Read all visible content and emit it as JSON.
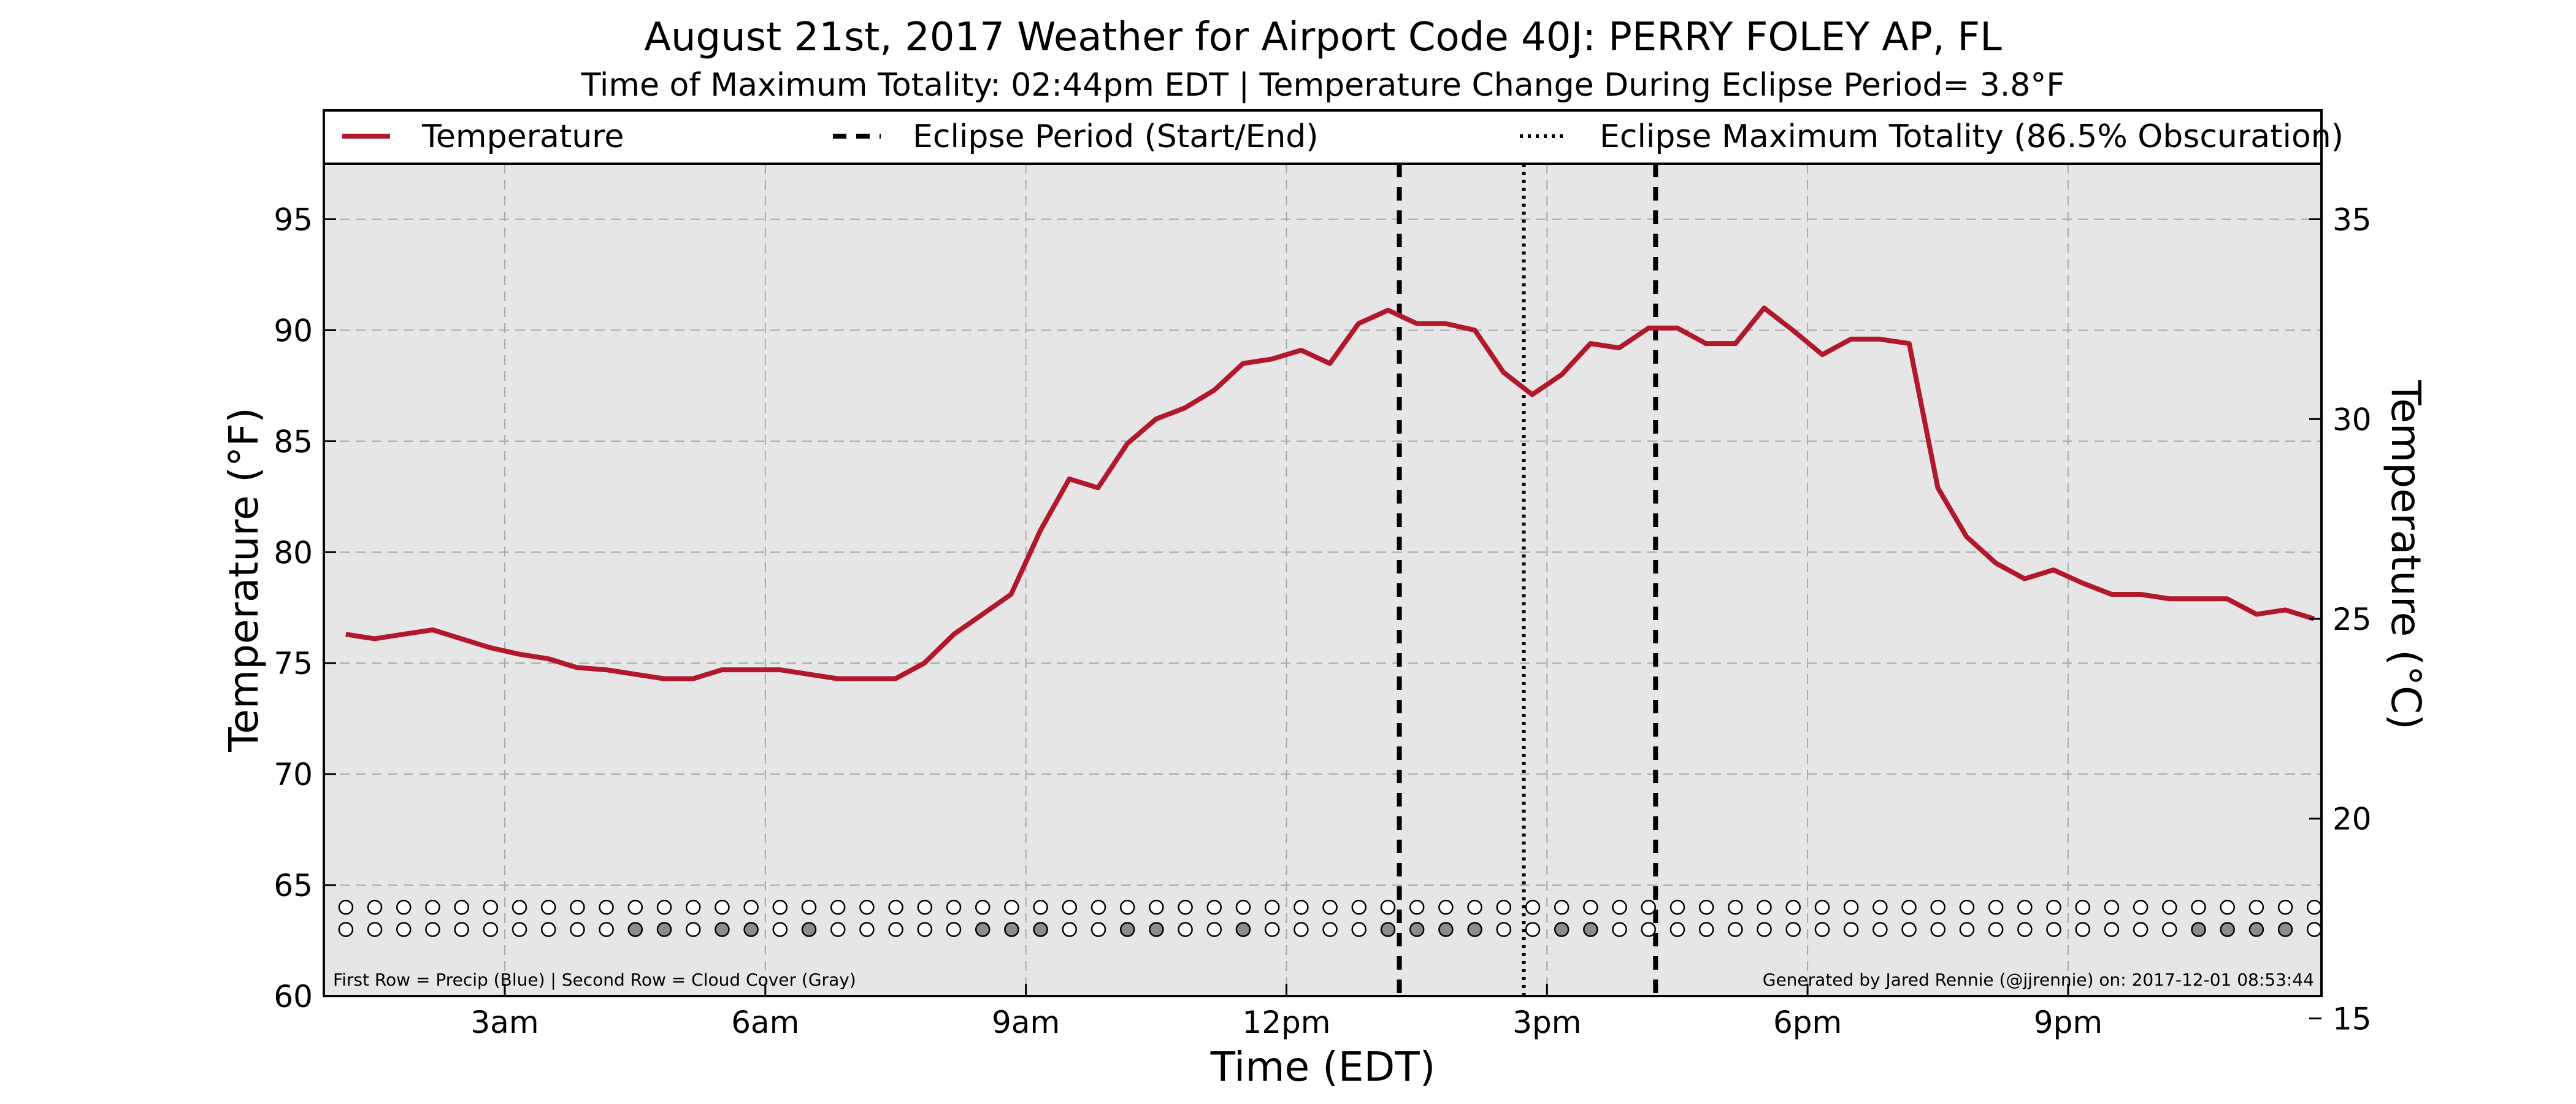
{
  "chart_data": {
    "type": "line",
    "title": "August 21st, 2017 Weather for Airport Code 40J: PERRY FOLEY AP, FL",
    "subtitle": "Time of Maximum Totality: 02:44pm EDT | Temperature Change During Eclipse Period= 3.8°F",
    "xlabel": "Time (EDT)",
    "ylabel": "Temperature (°F)",
    "ylabel_right": "Temperature (°C)",
    "x_unit": "hours after midnight EDT",
    "xlim": [
      0.917,
      23.917
    ],
    "ylim": [
      60,
      97.5
    ],
    "ylim_right": [
      15.56,
      36.39
    ],
    "x_ticks": [
      {
        "x": 3,
        "label": "3am"
      },
      {
        "x": 6,
        "label": "6am"
      },
      {
        "x": 9,
        "label": "9am"
      },
      {
        "x": 12,
        "label": "12pm"
      },
      {
        "x": 15,
        "label": "3pm"
      },
      {
        "x": 18,
        "label": "6pm"
      },
      {
        "x": 21,
        "label": "9pm"
      }
    ],
    "y_ticks": [
      60,
      65,
      70,
      75,
      80,
      85,
      90,
      95
    ],
    "y_ticks_right": [
      15,
      20,
      25,
      30,
      35
    ],
    "grid": true,
    "legend": {
      "placement": "top",
      "entries": [
        {
          "label": "Temperature",
          "style": "solid",
          "color": "#b2182b"
        },
        {
          "label": "Eclipse Period (Start/End)",
          "style": "dashed",
          "color": "#000000"
        },
        {
          "label": "Eclipse Maximum Totality (86.5% Obscuration)",
          "style": "dotted",
          "color": "#000000"
        }
      ]
    },
    "series": [
      {
        "name": "Temperature",
        "color": "#b2182b",
        "points": [
          [
            1.17,
            76.3
          ],
          [
            1.5,
            76.1
          ],
          [
            1.83,
            76.3
          ],
          [
            2.17,
            76.5
          ],
          [
            2.5,
            76.1
          ],
          [
            2.83,
            75.7
          ],
          [
            3.17,
            75.4
          ],
          [
            3.5,
            75.2
          ],
          [
            3.83,
            74.8
          ],
          [
            4.17,
            74.7
          ],
          [
            4.5,
            74.5
          ],
          [
            4.83,
            74.3
          ],
          [
            5.17,
            74.3
          ],
          [
            5.5,
            74.7
          ],
          [
            5.83,
            74.7
          ],
          [
            6.17,
            74.7
          ],
          [
            6.5,
            74.5
          ],
          [
            6.83,
            74.3
          ],
          [
            7.17,
            74.3
          ],
          [
            7.5,
            74.3
          ],
          [
            7.83,
            75.0
          ],
          [
            8.17,
            76.3
          ],
          [
            8.5,
            77.2
          ],
          [
            8.83,
            78.1
          ],
          [
            9.17,
            81.0
          ],
          [
            9.5,
            83.3
          ],
          [
            9.83,
            82.9
          ],
          [
            10.17,
            84.9
          ],
          [
            10.5,
            86.0
          ],
          [
            10.83,
            86.5
          ],
          [
            11.17,
            87.3
          ],
          [
            11.5,
            88.5
          ],
          [
            11.83,
            88.7
          ],
          [
            12.17,
            89.1
          ],
          [
            12.5,
            88.5
          ],
          [
            12.83,
            90.3
          ],
          [
            13.17,
            90.9
          ],
          [
            13.5,
            90.3
          ],
          [
            13.83,
            90.3
          ],
          [
            14.17,
            90.0
          ],
          [
            14.5,
            88.1
          ],
          [
            14.83,
            87.1
          ],
          [
            15.17,
            88.0
          ],
          [
            15.5,
            89.4
          ],
          [
            15.83,
            89.2
          ],
          [
            16.17,
            90.1
          ],
          [
            16.5,
            90.1
          ],
          [
            16.83,
            89.4
          ],
          [
            17.17,
            89.4
          ],
          [
            17.5,
            91.0
          ],
          [
            17.83,
            90.0
          ],
          [
            18.17,
            88.9
          ],
          [
            18.5,
            89.6
          ],
          [
            18.83,
            89.6
          ],
          [
            19.17,
            89.4
          ],
          [
            19.5,
            82.9
          ],
          [
            19.83,
            80.7
          ],
          [
            20.17,
            79.5
          ],
          [
            20.5,
            78.8
          ],
          [
            20.83,
            79.2
          ],
          [
            21.17,
            78.6
          ],
          [
            21.5,
            78.1
          ],
          [
            21.83,
            78.1
          ],
          [
            22.17,
            77.9
          ],
          [
            22.5,
            77.9
          ],
          [
            22.83,
            77.9
          ],
          [
            23.17,
            77.2
          ],
          [
            23.5,
            77.4
          ],
          [
            23.83,
            77.0
          ]
        ]
      }
    ],
    "eclipse_period": {
      "start": 13.3,
      "end": 16.25
    },
    "max_totality": 14.733,
    "max_totality_label": "02:44pm EDT",
    "obscuration_percent": 86.5,
    "temperature_change_f": 3.8,
    "weather_rows": {
      "x_start": 1.17,
      "x_step": 0.3333,
      "precip_y": 64.0,
      "cloud_y": 63.0,
      "precip_color": "#1f77b4",
      "cloud_gray_color": "#8c8c8c",
      "precip": [
        0,
        0,
        0,
        0,
        0,
        0,
        0,
        0,
        0,
        0,
        0,
        0,
        0,
        0,
        0,
        0,
        0,
        0,
        0,
        0,
        0,
        0,
        0,
        0,
        0,
        0,
        0,
        0,
        0,
        0,
        0,
        0,
        0,
        0,
        0,
        0,
        0,
        0,
        0,
        0,
        0,
        0,
        0,
        0,
        0,
        0,
        0,
        0,
        0,
        0,
        0,
        0,
        0,
        0,
        0,
        0,
        0,
        0,
        0,
        0,
        0,
        0,
        0,
        0,
        0,
        0,
        0,
        0,
        0
      ],
      "cloud_cover": [
        0,
        0,
        0,
        0,
        0,
        0,
        0,
        0,
        0,
        0,
        1,
        1,
        0,
        1,
        1,
        0,
        1,
        0,
        0,
        0,
        0,
        0,
        1,
        1,
        1,
        0,
        0,
        1,
        1,
        0,
        0,
        1,
        0,
        0,
        0,
        0,
        1,
        1,
        1,
        1,
        0,
        0,
        1,
        1,
        0,
        0,
        0,
        0,
        0,
        0,
        0,
        0,
        0,
        0,
        0,
        0,
        0,
        0,
        0,
        0,
        0,
        0,
        0,
        0,
        1,
        1,
        1,
        1,
        0
      ]
    },
    "footnote_left": "First Row = Precip (Blue) | Second Row = Cloud Cover (Gray)",
    "footnote_right": "Generated by Jared Rennie (@jjrennie) on: 2017-12-01 08:53:44"
  }
}
